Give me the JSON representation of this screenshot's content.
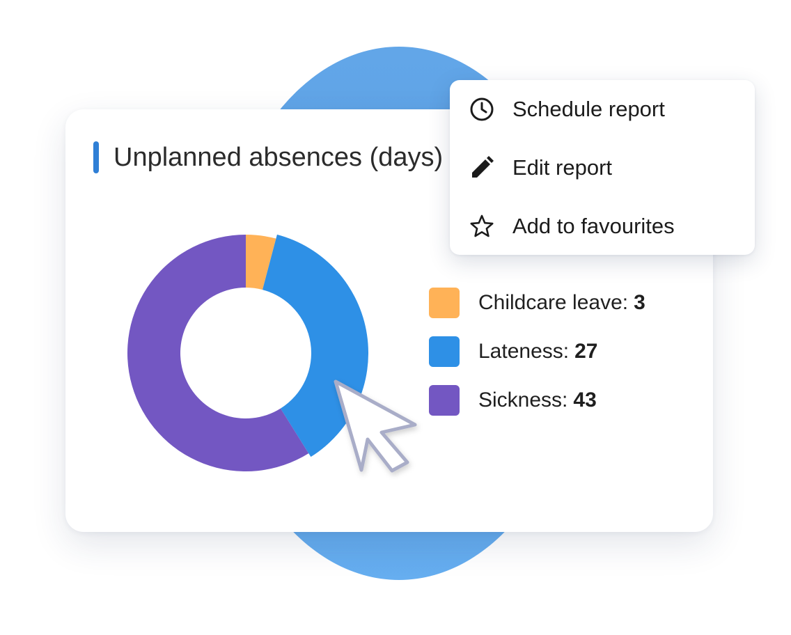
{
  "card": {
    "title": "Unplanned absences (days)",
    "accent_color": "#2f7fd6"
  },
  "context_menu": {
    "items": [
      {
        "label": "Schedule report",
        "icon": "clock-icon"
      },
      {
        "label": "Edit report",
        "icon": "pencil-icon"
      },
      {
        "label": "Add to favourites",
        "icon": "star-icon"
      }
    ]
  },
  "chart_data": {
    "type": "pie",
    "style": "donut",
    "title": "Unplanned absences (days)",
    "categories": [
      "Childcare leave",
      "Lateness",
      "Sickness"
    ],
    "values": [
      3,
      27,
      43
    ],
    "colors": [
      "#ffb257",
      "#2e90e6",
      "#7357c2"
    ],
    "legend": "right",
    "legend_labels": [
      "Childcare leave:",
      "Lateness:",
      "Sickness:"
    ],
    "legend_values": [
      "3",
      "27",
      "43"
    ]
  }
}
